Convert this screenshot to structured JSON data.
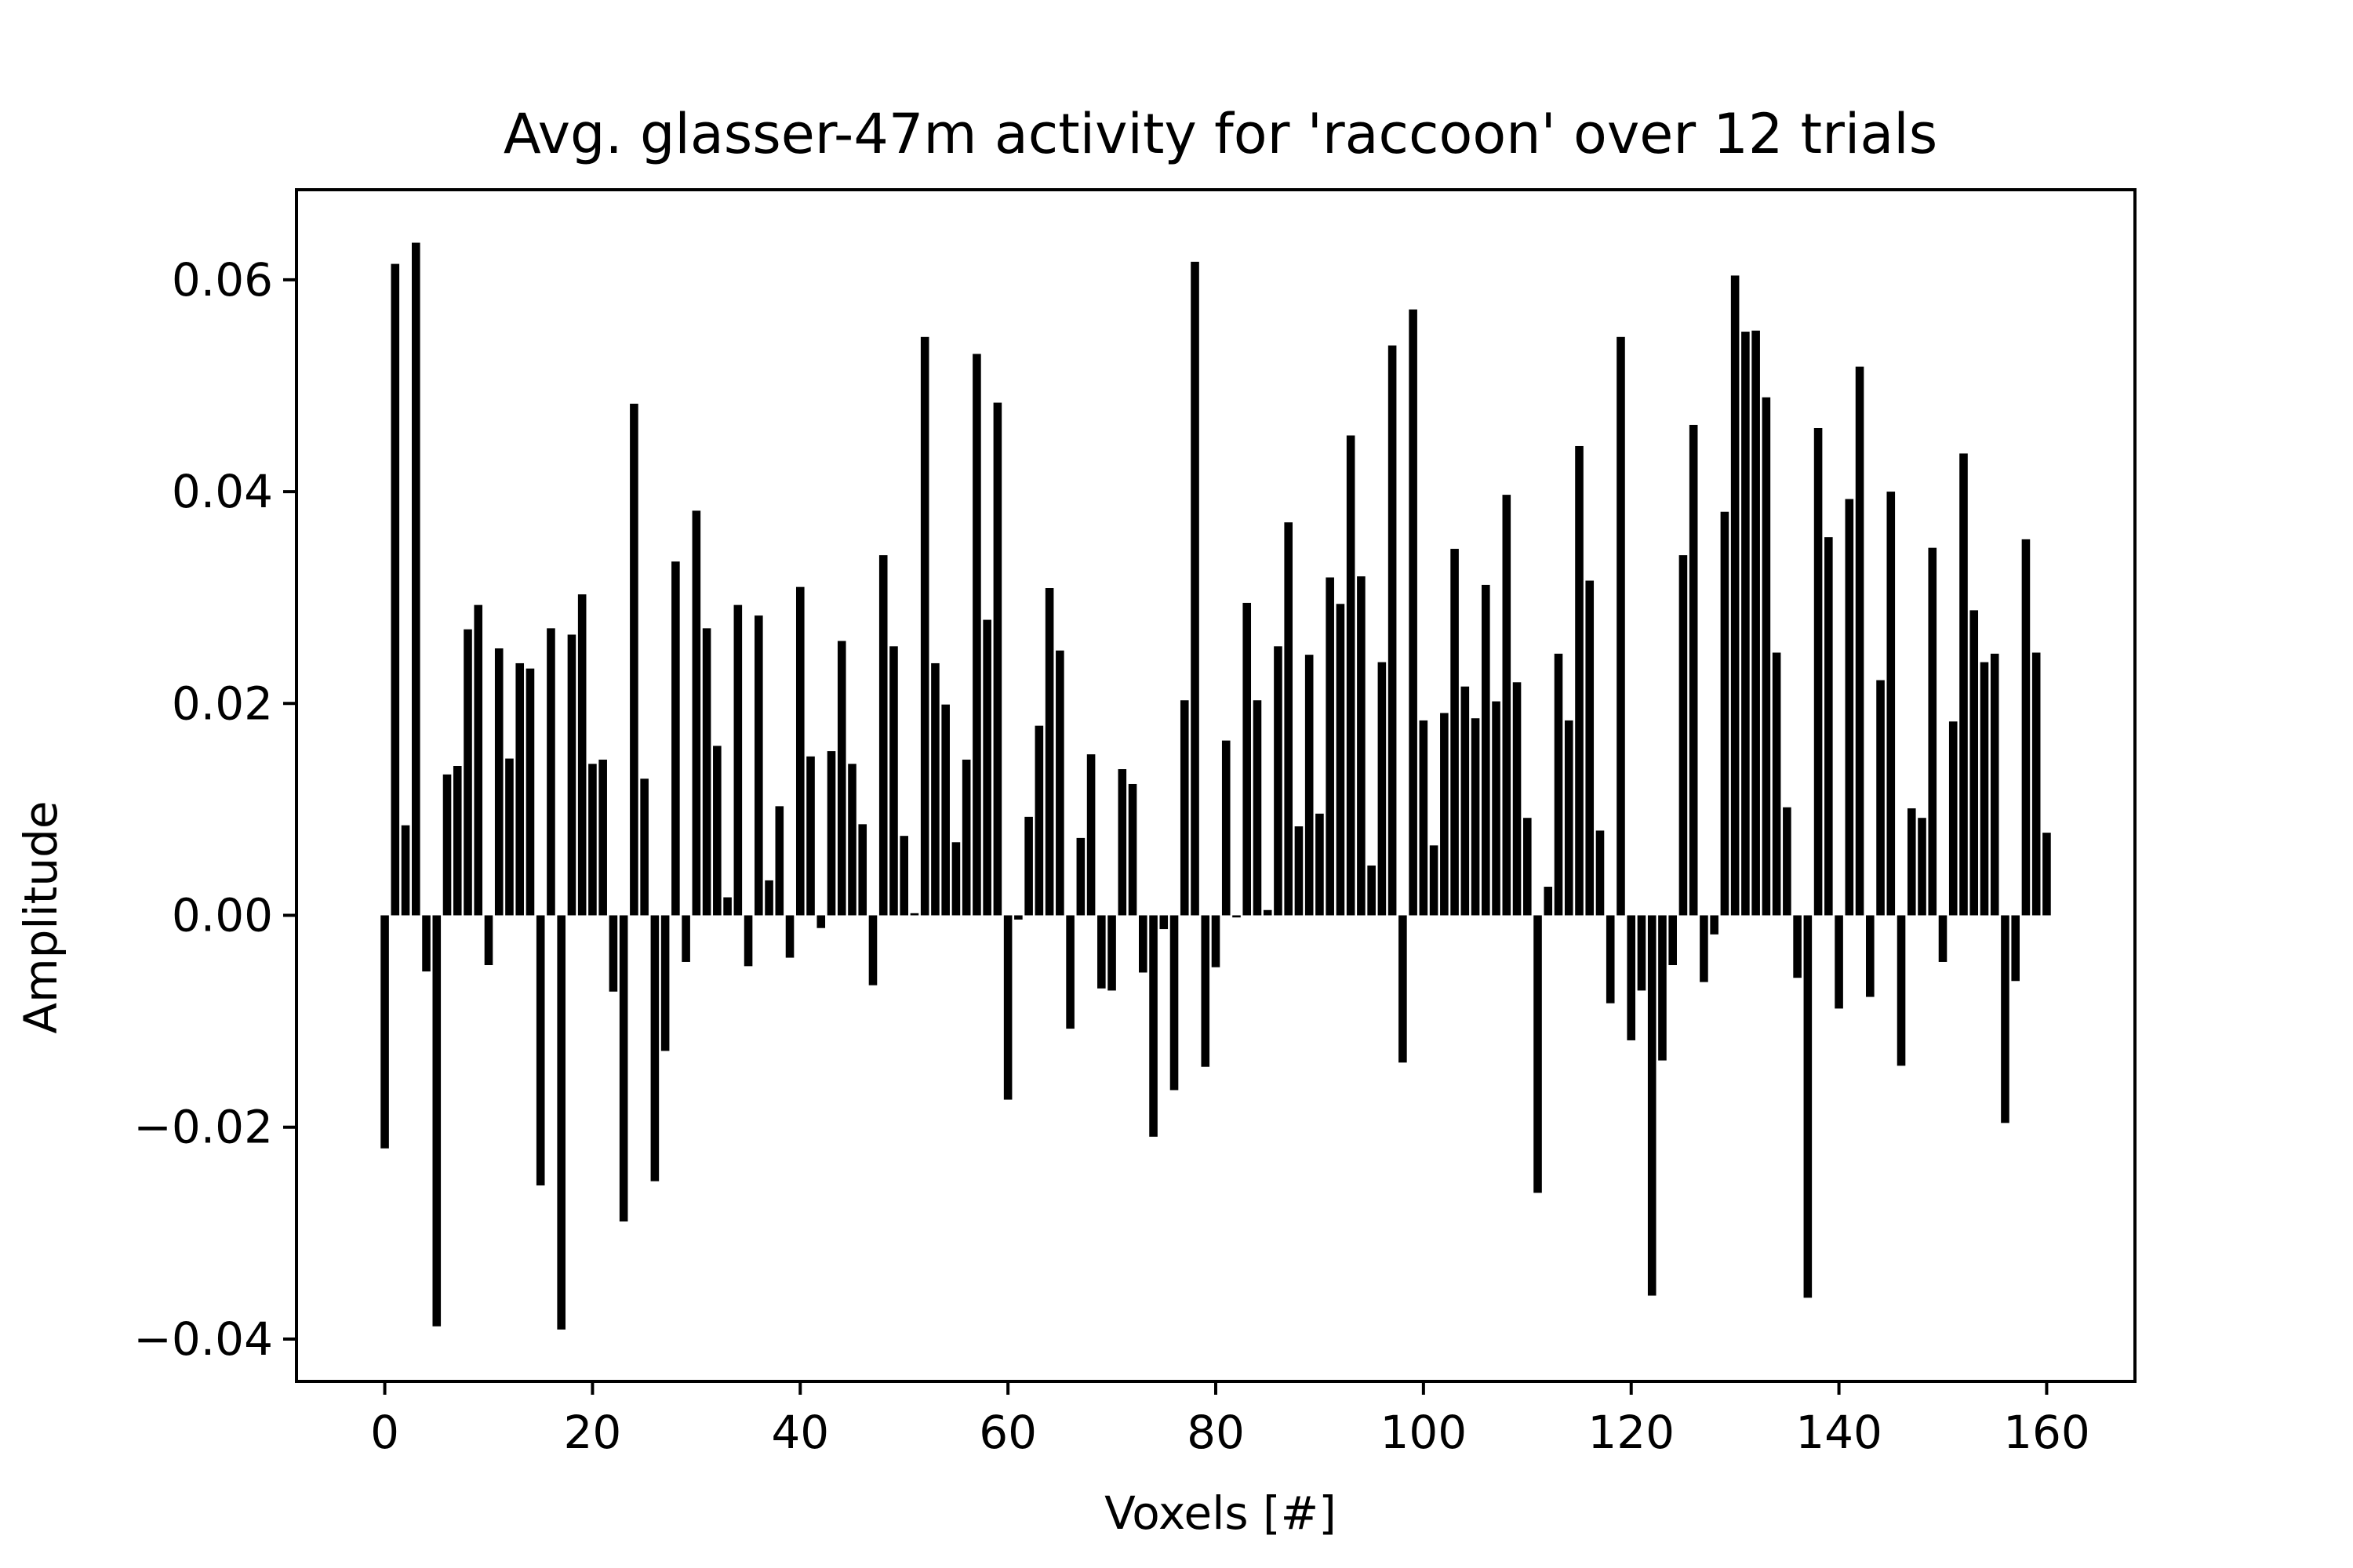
{
  "chart_data": {
    "type": "bar",
    "title": "Avg. glasser-47m activity for 'raccoon' over 12 trials",
    "xlabel": "Voxels [#]",
    "ylabel": "Amplitude",
    "xlim": [
      -8.5,
      168.5
    ],
    "ylim": [
      -0.044,
      0.0685
    ],
    "xticks": [
      0,
      20,
      40,
      60,
      80,
      100,
      120,
      140,
      160
    ],
    "xtick_labels": [
      "0",
      "20",
      "40",
      "60",
      "80",
      "100",
      "120",
      "140",
      "160"
    ],
    "yticks": [
      -0.04,
      -0.02,
      0.0,
      0.02,
      0.04,
      0.06
    ],
    "ytick_labels": [
      "−0.04",
      "−0.02",
      "0.00",
      "0.02",
      "0.04",
      "0.06"
    ],
    "bar_color": "#000000",
    "grid": false,
    "x": [
      0,
      1,
      2,
      3,
      4,
      5,
      6,
      7,
      8,
      9,
      10,
      11,
      12,
      13,
      14,
      15,
      16,
      17,
      18,
      19,
      20,
      21,
      22,
      23,
      24,
      25,
      26,
      27,
      28,
      29,
      30,
      31,
      32,
      33,
      34,
      35,
      36,
      37,
      38,
      39,
      40,
      41,
      42,
      43,
      44,
      45,
      46,
      47,
      48,
      49,
      50,
      51,
      52,
      53,
      54,
      55,
      56,
      57,
      58,
      59,
      60,
      61,
      62,
      63,
      64,
      65,
      66,
      67,
      68,
      69,
      70,
      71,
      72,
      73,
      74,
      75,
      76,
      77,
      78,
      79,
      80,
      81,
      82,
      83,
      84,
      85,
      86,
      87,
      88,
      89,
      90,
      91,
      92,
      93,
      94,
      95,
      96,
      97,
      98,
      99,
      100,
      101,
      102,
      103,
      104,
      105,
      106,
      107,
      108,
      109,
      110,
      111,
      112,
      113,
      114,
      115,
      116,
      117,
      118,
      119,
      120,
      121,
      122,
      123,
      124,
      125,
      126,
      127,
      128,
      129,
      130,
      131,
      132,
      133,
      134,
      135,
      136,
      137,
      138,
      139,
      140,
      141,
      142,
      143,
      144,
      145,
      146,
      147,
      148,
      149,
      150,
      151,
      152,
      153,
      154,
      155,
      156,
      157,
      158,
      159,
      160
    ],
    "values": [
      -0.022,
      0.0615,
      0.0085,
      0.0635,
      -0.0053,
      -0.0388,
      0.0133,
      0.0141,
      0.027,
      0.0293,
      -0.0047,
      0.0252,
      0.0148,
      0.0238,
      0.0233,
      -0.0255,
      0.0271,
      -0.0391,
      0.0265,
      0.0303,
      0.0143,
      0.0147,
      -0.0072,
      -0.0289,
      0.0483,
      0.0129,
      -0.0251,
      -0.0128,
      0.0334,
      -0.0044,
      0.0382,
      0.0271,
      0.016,
      0.0017,
      0.0293,
      -0.0048,
      0.0283,
      0.0033,
      0.0103,
      -0.004,
      0.031,
      0.015,
      -0.0012,
      0.0155,
      0.0259,
      0.0143,
      0.0086,
      -0.0066,
      0.034,
      0.0254,
      0.0075,
      0.0002,
      0.0546,
      0.0238,
      0.0199,
      0.0069,
      0.0147,
      0.053,
      0.0279,
      0.0484,
      -0.0174,
      -0.0004,
      0.0093,
      0.0179,
      0.0309,
      0.025,
      -0.0107,
      0.0073,
      0.0152,
      -0.0069,
      -0.0071,
      0.0138,
      0.0124,
      -0.0054,
      -0.0209,
      -0.0013,
      -0.0165,
      0.0203,
      0.0617,
      -0.0143,
      -0.0049,
      0.0165,
      -0.0002,
      0.0295,
      0.0203,
      0.0005,
      0.0254,
      0.0371,
      0.0084,
      0.0246,
      0.0096,
      0.0319,
      0.0294,
      0.0453,
      0.032,
      0.0047,
      0.0239,
      0.0538,
      -0.0139,
      0.0572,
      0.0184,
      0.0066,
      0.0191,
      0.0346,
      0.0216,
      0.0186,
      0.0312,
      0.0202,
      0.0397,
      0.022,
      0.0092,
      -0.0262,
      0.0027,
      0.0247,
      0.0184,
      0.0443,
      0.0316,
      0.008,
      -0.0083,
      0.0546,
      -0.0118,
      -0.0071,
      -0.0359,
      -0.0137,
      -0.0047,
      0.034,
      0.0463,
      -0.0063,
      -0.0018,
      0.0381,
      0.0604,
      0.0551,
      0.0552,
      0.0489,
      0.0248,
      0.0102,
      -0.0059,
      -0.0361,
      0.046,
      0.0357,
      -0.0088,
      0.0393,
      0.0518,
      -0.0077,
      0.0222,
      0.04,
      -0.0142,
      0.0101,
      0.0092,
      0.0347,
      -0.0044,
      0.0183,
      0.0436,
      0.0288,
      0.0239,
      0.0247,
      -0.0196,
      -0.0062,
      0.0355,
      0.0248,
      0.0078
    ]
  }
}
